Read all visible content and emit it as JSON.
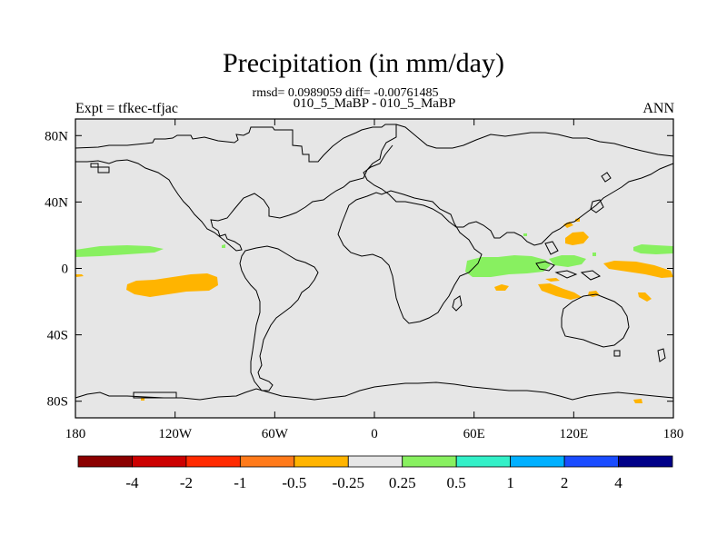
{
  "map": {
    "title": "Precipitation (in mm/day)",
    "stats_line": "rmsd= 0.0989059 diff= -0.00761485",
    "case_line": "010_5_MaBP - 010_5_MaBP",
    "left_label": "Expt = tfkec-tfjac",
    "right_label": "ANN",
    "background_color": "#e6e6e6",
    "y_ticks": [
      {
        "value": 80,
        "label": "80N"
      },
      {
        "value": 40,
        "label": "40N"
      },
      {
        "value": 0,
        "label": "0"
      },
      {
        "value": -40,
        "label": "40S"
      },
      {
        "value": -80,
        "label": "80S"
      }
    ],
    "x_ticks": [
      {
        "value": -180,
        "label": "180"
      },
      {
        "value": -120,
        "label": "120W"
      },
      {
        "value": -60,
        "label": "60W"
      },
      {
        "value": 0,
        "label": "0"
      },
      {
        "value": 60,
        "label": "60E"
      },
      {
        "value": 120,
        "label": "120E"
      },
      {
        "value": 180,
        "label": "180"
      }
    ]
  },
  "colorbar": {
    "colors": [
      "#8b0000",
      "#cc0000",
      "#ff2a00",
      "#ff7a1a",
      "#ffb400",
      "#e6e6e6",
      "#88f060",
      "#33f0c8",
      "#00b0ff",
      "#1a4cff",
      "#000088"
    ],
    "labels": [
      "-4",
      "-2",
      "-1",
      "-0.5",
      "-0.25",
      "0.25",
      "0.5",
      "1",
      "2",
      "4"
    ]
  },
  "anomaly_colors": {
    "orange": "#ffb400",
    "green": "#88f060"
  }
}
